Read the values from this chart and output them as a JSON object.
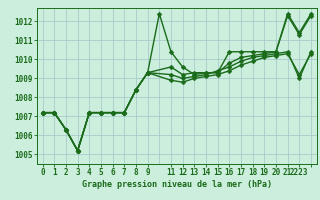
{
  "background_color": "#cceedd",
  "grid_color": "#aacccc",
  "line_color": "#1a6b1a",
  "xlim": [
    -0.5,
    23.5
  ],
  "ylim": [
    1004.5,
    1012.7
  ],
  "yticks": [
    1005,
    1006,
    1007,
    1008,
    1009,
    1010,
    1011,
    1012
  ],
  "xlabel": "Graphe pression niveau de la mer (hPa)",
  "series": [
    {
      "x": [
        0,
        1,
        2,
        3,
        4,
        5,
        6,
        7,
        8,
        9,
        10,
        11,
        12,
        13,
        14,
        15,
        16,
        17,
        18,
        19,
        20,
        21,
        22,
        23
      ],
      "y": [
        1007.2,
        1007.2,
        1006.3,
        1005.2,
        1007.2,
        1007.2,
        1007.2,
        1007.2,
        1008.4,
        1009.3,
        1012.4,
        1010.4,
        1009.6,
        1009.2,
        1009.3,
        1009.3,
        1010.4,
        1010.4,
        1010.4,
        1010.4,
        1010.4,
        1012.4,
        1011.4,
        1012.4
      ]
    },
    {
      "x": [
        0,
        1,
        2,
        3,
        4,
        5,
        6,
        7,
        8,
        9,
        11,
        12,
        13,
        14,
        15,
        16,
        17,
        18,
        19,
        20,
        21,
        22,
        23
      ],
      "y": [
        1007.2,
        1007.2,
        1006.3,
        1005.2,
        1007.2,
        1007.2,
        1007.2,
        1007.2,
        1008.4,
        1009.3,
        1009.6,
        1009.2,
        1009.3,
        1009.3,
        1009.3,
        1009.8,
        1010.1,
        1010.2,
        1010.3,
        1010.4,
        1012.3,
        1011.3,
        1012.3
      ]
    },
    {
      "x": [
        0,
        1,
        2,
        3,
        4,
        5,
        6,
        7,
        8,
        9,
        11,
        12,
        13,
        14,
        15,
        16,
        17,
        18,
        19,
        20,
        21,
        22,
        23
      ],
      "y": [
        1007.2,
        1007.2,
        1006.3,
        1005.2,
        1007.2,
        1007.2,
        1007.2,
        1007.2,
        1008.4,
        1009.3,
        1009.2,
        1009.0,
        1009.1,
        1009.2,
        1009.4,
        1009.6,
        1009.9,
        1010.1,
        1010.2,
        1010.3,
        1010.4,
        1009.0,
        1010.4
      ]
    },
    {
      "x": [
        0,
        1,
        2,
        3,
        4,
        5,
        6,
        7,
        8,
        9,
        11,
        12,
        13,
        14,
        15,
        16,
        17,
        18,
        19,
        20,
        21,
        22,
        23
      ],
      "y": [
        1007.2,
        1007.2,
        1006.3,
        1005.2,
        1007.2,
        1007.2,
        1007.2,
        1007.2,
        1008.4,
        1009.3,
        1008.9,
        1008.8,
        1009.0,
        1009.1,
        1009.2,
        1009.4,
        1009.7,
        1009.9,
        1010.1,
        1010.2,
        1010.3,
        1009.2,
        1010.3
      ]
    }
  ],
  "xtick_positions": [
    0,
    1,
    2,
    3,
    4,
    5,
    6,
    7,
    8,
    9,
    11,
    12,
    13,
    14,
    15,
    16,
    17,
    18,
    19,
    20,
    21,
    22,
    23
  ],
  "xtick_labels": [
    "0",
    "1",
    "2",
    "3",
    "4",
    "5",
    "6",
    "7",
    "8",
    "9",
    "11",
    "12",
    "13",
    "14",
    "15",
    "16",
    "17",
    "18",
    "19",
    "20",
    "21",
    "2223",
    ""
  ],
  "tick_fontsize": 5.5,
  "xlabel_fontsize": 6.0,
  "linewidth": 1.0,
  "markersize": 2.5
}
